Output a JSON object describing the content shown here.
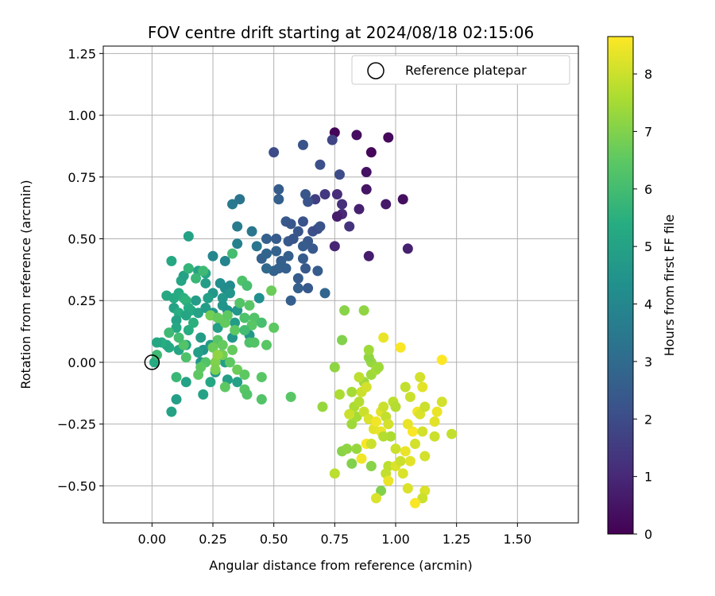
{
  "chart_data": {
    "type": "scatter",
    "title": "FOV centre drift starting at 2024/08/18 02:15:06",
    "xlabel": "Angular distance from reference (arcmin)",
    "ylabel": "Rotation from reference (arcmin)",
    "xlim": [
      -0.2,
      1.75
    ],
    "ylim": [
      -0.65,
      1.28
    ],
    "xticks": [
      "0.00",
      "0.25",
      "0.50",
      "0.75",
      "1.00",
      "1.25",
      "1.50"
    ],
    "xtick_values": [
      0,
      0.25,
      0.5,
      0.75,
      1.0,
      1.25,
      1.5
    ],
    "yticks": [
      "−0.50",
      "−0.25",
      "0.00",
      "0.25",
      "0.50",
      "0.75",
      "1.00",
      "1.25"
    ],
    "ytick_values": [
      -0.5,
      -0.25,
      0,
      0.25,
      0.5,
      0.75,
      1.0,
      1.25
    ],
    "grid": true,
    "legend": {
      "location": "top-right",
      "entries": [
        "Reference platepar"
      ]
    },
    "reference_point": {
      "x": 0.0,
      "y": 0.0
    },
    "colorbar": {
      "label": "Hours from first FF file",
      "range": [
        0,
        8.65
      ],
      "colormap": "viridis",
      "tick_labels": [
        "0",
        "1",
        "2",
        "3",
        "4",
        "5",
        "6",
        "7",
        "8"
      ],
      "tick_values": [
        0,
        1,
        2,
        3,
        4,
        5,
        6,
        7,
        8
      ]
    },
    "points": [
      [
        0.75,
        0.93,
        0.1
      ],
      [
        0.84,
        0.92,
        0.3
      ],
      [
        0.97,
        0.91,
        0.2
      ],
      [
        0.9,
        0.85,
        0.15
      ],
      [
        0.88,
        0.77,
        0.4
      ],
      [
        0.88,
        0.7,
        0.5
      ],
      [
        0.96,
        0.64,
        0.6
      ],
      [
        1.03,
        0.66,
        0.35
      ],
      [
        0.85,
        0.62,
        0.8
      ],
      [
        0.78,
        0.6,
        1.0
      ],
      [
        0.76,
        0.59,
        0.7
      ],
      [
        0.76,
        0.68,
        1.1
      ],
      [
        0.78,
        0.64,
        1.2
      ],
      [
        0.71,
        0.68,
        1.4
      ],
      [
        0.67,
        0.66,
        1.6
      ],
      [
        0.75,
        0.47,
        0.9
      ],
      [
        0.89,
        0.43,
        0.7
      ],
      [
        1.05,
        0.46,
        0.8
      ],
      [
        0.81,
        0.55,
        1.3
      ],
      [
        0.5,
        0.85,
        2.0
      ],
      [
        0.62,
        0.88,
        2.2
      ],
      [
        0.74,
        0.9,
        1.8
      ],
      [
        0.69,
        0.8,
        2.1
      ],
      [
        0.77,
        0.76,
        2.0
      ],
      [
        0.52,
        0.7,
        2.5
      ],
      [
        0.52,
        0.66,
        2.6
      ],
      [
        0.63,
        0.68,
        2.3
      ],
      [
        0.64,
        0.65,
        2.2
      ],
      [
        0.55,
        0.57,
        2.4
      ],
      [
        0.57,
        0.56,
        2.3
      ],
      [
        0.62,
        0.57,
        2.2
      ],
      [
        0.6,
        0.53,
        2.3
      ],
      [
        0.66,
        0.53,
        2.1
      ],
      [
        0.68,
        0.54,
        2.0
      ],
      [
        0.47,
        0.5,
        2.6
      ],
      [
        0.51,
        0.5,
        2.5
      ],
      [
        0.56,
        0.49,
        2.4
      ],
      [
        0.58,
        0.5,
        2.3
      ],
      [
        0.64,
        0.49,
        2.4
      ],
      [
        0.69,
        0.55,
        2.2
      ],
      [
        0.62,
        0.47,
        2.5
      ],
      [
        0.66,
        0.46,
        2.4
      ],
      [
        0.45,
        0.42,
        2.7
      ],
      [
        0.47,
        0.44,
        2.8
      ],
      [
        0.51,
        0.45,
        2.7
      ],
      [
        0.53,
        0.41,
        2.6
      ],
      [
        0.56,
        0.43,
        2.6
      ],
      [
        0.52,
        0.38,
        2.7
      ],
      [
        0.5,
        0.37,
        2.7
      ],
      [
        0.47,
        0.38,
        2.9
      ],
      [
        0.55,
        0.38,
        2.6
      ],
      [
        0.63,
        0.38,
        2.4
      ],
      [
        0.62,
        0.42,
        2.5
      ],
      [
        0.6,
        0.34,
        2.5
      ],
      [
        0.68,
        0.37,
        2.5
      ],
      [
        0.6,
        0.3,
        2.6
      ],
      [
        0.64,
        0.3,
        2.4
      ],
      [
        0.57,
        0.25,
        2.6
      ],
      [
        0.71,
        0.28,
        2.8
      ],
      [
        0.33,
        0.64,
        3.5
      ],
      [
        0.36,
        0.66,
        3.3
      ],
      [
        0.35,
        0.55,
        3.6
      ],
      [
        0.41,
        0.53,
        3.4
      ],
      [
        0.35,
        0.48,
        3.8
      ],
      [
        0.43,
        0.47,
        3.4
      ],
      [
        0.3,
        0.41,
        3.9
      ],
      [
        0.25,
        0.43,
        4.0
      ],
      [
        0.15,
        0.51,
        5.0
      ],
      [
        0.08,
        0.41,
        5.2
      ],
      [
        0.12,
        0.33,
        5.1
      ],
      [
        0.13,
        0.35,
        5.0
      ],
      [
        0.15,
        0.38,
        4.9
      ],
      [
        0.19,
        0.37,
        5.0
      ],
      [
        0.22,
        0.36,
        5.1
      ],
      [
        0.22,
        0.32,
        4.8
      ],
      [
        0.28,
        0.32,
        4.3
      ],
      [
        0.3,
        0.3,
        4.2
      ],
      [
        0.32,
        0.31,
        4.1
      ],
      [
        0.29,
        0.26,
        4.6
      ],
      [
        0.32,
        0.28,
        4.5
      ],
      [
        0.25,
        0.28,
        4.6
      ],
      [
        0.23,
        0.26,
        4.9
      ],
      [
        0.18,
        0.25,
        4.8
      ],
      [
        0.11,
        0.28,
        5.3
      ],
      [
        0.13,
        0.26,
        5.5
      ],
      [
        0.09,
        0.26,
        5.3
      ],
      [
        0.06,
        0.27,
        5.2
      ],
      [
        0.09,
        0.22,
        5.0
      ],
      [
        0.11,
        0.2,
        5.4
      ],
      [
        0.14,
        0.25,
        5.6
      ],
      [
        0.15,
        0.22,
        5.4
      ],
      [
        0.16,
        0.21,
        5.3
      ],
      [
        0.14,
        0.19,
        5.1
      ],
      [
        0.1,
        0.17,
        5.0
      ],
      [
        0.1,
        0.14,
        5.2
      ],
      [
        0.15,
        0.13,
        5.4
      ],
      [
        0.17,
        0.16,
        5.5
      ],
      [
        0.19,
        0.2,
        5.0
      ],
      [
        0.22,
        0.22,
        4.8
      ],
      [
        0.25,
        0.2,
        4.6
      ],
      [
        0.29,
        0.23,
        4.5
      ],
      [
        0.31,
        0.21,
        4.4
      ],
      [
        0.35,
        0.21,
        4.6
      ],
      [
        0.34,
        0.16,
        4.8
      ],
      [
        0.27,
        0.14,
        4.9
      ],
      [
        0.2,
        0.1,
        4.8
      ],
      [
        0.21,
        0.05,
        4.5
      ],
      [
        0.24,
        0.07,
        4.7
      ],
      [
        0.19,
        0.04,
        4.9
      ],
      [
        0.14,
        0.07,
        5.0
      ],
      [
        0.11,
        0.05,
        5.1
      ],
      [
        0.07,
        0.06,
        5.3
      ],
      [
        0.06,
        0.07,
        5.2
      ],
      [
        0.04,
        0.08,
        5.4
      ],
      [
        0.02,
        0.08,
        5.2
      ],
      [
        0.01,
        0.0,
        5.3
      ],
      [
        0.2,
        0.0,
        4.5
      ],
      [
        0.28,
        0.03,
        4.8
      ],
      [
        0.3,
        0.0,
        4.9
      ],
      [
        0.26,
        -0.04,
        4.7
      ],
      [
        0.31,
        -0.07,
        4.9
      ],
      [
        0.35,
        -0.08,
        5.0
      ],
      [
        0.24,
        -0.08,
        5.2
      ],
      [
        0.21,
        -0.13,
        5.0
      ],
      [
        0.14,
        -0.08,
        5.0
      ],
      [
        0.1,
        -0.15,
        4.9
      ],
      [
        0.08,
        -0.2,
        5.0
      ],
      [
        0.44,
        0.26,
        4.3
      ],
      [
        0.4,
        0.11,
        4.6
      ],
      [
        0.33,
        0.1,
        4.6
      ],
      [
        0.15,
        0.38,
        5.7
      ],
      [
        0.18,
        0.34,
        5.8
      ],
      [
        0.21,
        0.37,
        5.9
      ],
      [
        0.37,
        0.33,
        6.2
      ],
      [
        0.39,
        0.31,
        6.1
      ],
      [
        0.33,
        0.44,
        6.0
      ],
      [
        0.36,
        0.24,
        6.3
      ],
      [
        0.4,
        0.23,
        6.4
      ],
      [
        0.42,
        0.18,
        6.3
      ],
      [
        0.38,
        0.18,
        6.2
      ],
      [
        0.34,
        0.13,
        6.5
      ],
      [
        0.3,
        0.16,
        6.6
      ],
      [
        0.24,
        0.19,
        6.8
      ],
      [
        0.27,
        0.18,
        6.6
      ],
      [
        0.31,
        0.19,
        6.5
      ],
      [
        0.41,
        0.15,
        6.4
      ],
      [
        0.45,
        0.16,
        6.1
      ],
      [
        0.38,
        0.13,
        6.0
      ],
      [
        0.4,
        0.08,
        6.2
      ],
      [
        0.47,
        0.07,
        6.4
      ],
      [
        0.5,
        0.14,
        6.5
      ],
      [
        0.49,
        0.29,
        6.7
      ],
      [
        0.27,
        0.09,
        6.4
      ],
      [
        0.29,
        0.07,
        6.6
      ],
      [
        0.33,
        0.05,
        6.6
      ],
      [
        0.29,
        0.03,
        6.8
      ],
      [
        0.26,
        0.0,
        7.0
      ],
      [
        0.26,
        -0.03,
        6.9
      ],
      [
        0.22,
        0.0,
        6.3
      ],
      [
        0.2,
        -0.02,
        6.5
      ],
      [
        0.19,
        -0.05,
        6.5
      ],
      [
        0.32,
        0.0,
        6.5
      ],
      [
        0.35,
        -0.03,
        6.7
      ],
      [
        0.38,
        -0.05,
        6.5
      ],
      [
        0.25,
        0.06,
        6.7
      ],
      [
        0.27,
        0.03,
        7.2
      ],
      [
        0.3,
        -0.1,
        6.5
      ],
      [
        0.38,
        -0.11,
        6.4
      ],
      [
        0.39,
        -0.13,
        6.3
      ],
      [
        0.45,
        -0.06,
        6.4
      ],
      [
        0.45,
        -0.15,
        6.3
      ],
      [
        0.57,
        -0.14,
        6.4
      ],
      [
        0.42,
        0.08,
        6.3
      ],
      [
        0.14,
        0.02,
        6.2
      ],
      [
        0.13,
        0.07,
        6.3
      ],
      [
        0.11,
        0.1,
        6.0
      ],
      [
        0.07,
        0.12,
        5.9
      ],
      [
        0.02,
        0.03,
        5.9
      ],
      [
        0.1,
        -0.06,
        5.8
      ],
      [
        0.79,
        0.21,
        7.1
      ],
      [
        0.87,
        0.21,
        7.2
      ],
      [
        0.78,
        0.09,
        7.0
      ],
      [
        0.7,
        -0.18,
        7.3
      ],
      [
        0.75,
        -0.02,
        7.2
      ],
      [
        0.77,
        -0.13,
        7.6
      ],
      [
        0.75,
        -0.45,
        7.8
      ],
      [
        0.78,
        -0.36,
        7.1
      ],
      [
        0.8,
        -0.35,
        7.2
      ],
      [
        0.84,
        -0.35,
        7.3
      ],
      [
        0.82,
        -0.41,
        7.0
      ],
      [
        0.9,
        -0.42,
        7.1
      ],
      [
        0.94,
        -0.52,
        7.0
      ],
      [
        0.92,
        -0.55,
        8.2
      ],
      [
        0.86,
        -0.39,
        8.5
      ],
      [
        0.88,
        -0.33,
        8.6
      ],
      [
        0.9,
        -0.33,
        8.0
      ],
      [
        0.82,
        -0.25,
        7.4
      ],
      [
        0.84,
        -0.22,
        7.5
      ],
      [
        0.83,
        -0.18,
        7.6
      ],
      [
        0.85,
        -0.16,
        7.7
      ],
      [
        0.82,
        -0.12,
        7.5
      ],
      [
        0.87,
        -0.08,
        7.4
      ],
      [
        0.9,
        -0.05,
        7.4
      ],
      [
        0.9,
        0.0,
        7.3
      ],
      [
        0.89,
        0.02,
        7.2
      ],
      [
        0.89,
        0.05,
        7.4
      ],
      [
        0.92,
        -0.03,
        7.5
      ],
      [
        0.93,
        -0.02,
        7.4
      ],
      [
        0.85,
        -0.06,
        7.8
      ],
      [
        0.86,
        -0.12,
        8.0
      ],
      [
        0.88,
        -0.1,
        8.1
      ],
      [
        0.87,
        -0.2,
        8.0
      ],
      [
        0.89,
        -0.23,
        8.2
      ],
      [
        0.91,
        -0.27,
        8.3
      ],
      [
        0.92,
        -0.24,
        8.5
      ],
      [
        0.94,
        -0.28,
        8.4
      ],
      [
        0.94,
        -0.2,
        8.3
      ],
      [
        0.95,
        -0.18,
        8.0
      ],
      [
        0.96,
        -0.22,
        7.9
      ],
      [
        0.99,
        -0.16,
        7.8
      ],
      [
        1.0,
        -0.18,
        7.7
      ],
      [
        0.97,
        -0.25,
        8.1
      ],
      [
        0.98,
        -0.3,
        7.6
      ],
      [
        1.0,
        -0.35,
        8.0
      ],
      [
        0.97,
        -0.42,
        7.8
      ],
      [
        1.0,
        -0.42,
        8.2
      ],
      [
        1.02,
        -0.4,
        8.0
      ],
      [
        1.03,
        -0.45,
        8.2
      ],
      [
        1.04,
        -0.36,
        8.4
      ],
      [
        1.06,
        -0.4,
        8.3
      ],
      [
        1.08,
        -0.33,
        8.1
      ],
      [
        1.07,
        -0.28,
        8.6
      ],
      [
        1.09,
        -0.2,
        8.5
      ],
      [
        1.1,
        -0.21,
        8.2
      ],
      [
        1.12,
        -0.18,
        8.0
      ],
      [
        1.11,
        -0.1,
        8.3
      ],
      [
        1.1,
        -0.06,
        8.1
      ],
      [
        1.04,
        -0.1,
        7.9
      ],
      [
        1.06,
        -0.14,
        8.0
      ],
      [
        1.05,
        -0.25,
        8.4
      ],
      [
        1.11,
        -0.28,
        8.1
      ],
      [
        1.16,
        -0.24,
        8.3
      ],
      [
        1.17,
        -0.2,
        8.4
      ],
      [
        1.19,
        -0.16,
        8.1
      ],
      [
        1.16,
        -0.3,
        8.0
      ],
      [
        1.12,
        -0.38,
        8.1
      ],
      [
        1.12,
        -0.52,
        8.2
      ],
      [
        1.11,
        -0.55,
        8.0
      ],
      [
        1.08,
        -0.57,
        8.6
      ],
      [
        1.05,
        -0.51,
        8.2
      ],
      [
        0.96,
        -0.45,
        7.9
      ],
      [
        0.97,
        -0.48,
        8.4
      ],
      [
        0.95,
        0.1,
        8.4
      ],
      [
        1.02,
        0.06,
        8.6
      ],
      [
        1.19,
        0.01,
        8.7
      ],
      [
        1.23,
        -0.29,
        7.9
      ],
      [
        0.81,
        -0.21,
        8.0
      ],
      [
        0.95,
        -0.3,
        7.7
      ]
    ]
  }
}
